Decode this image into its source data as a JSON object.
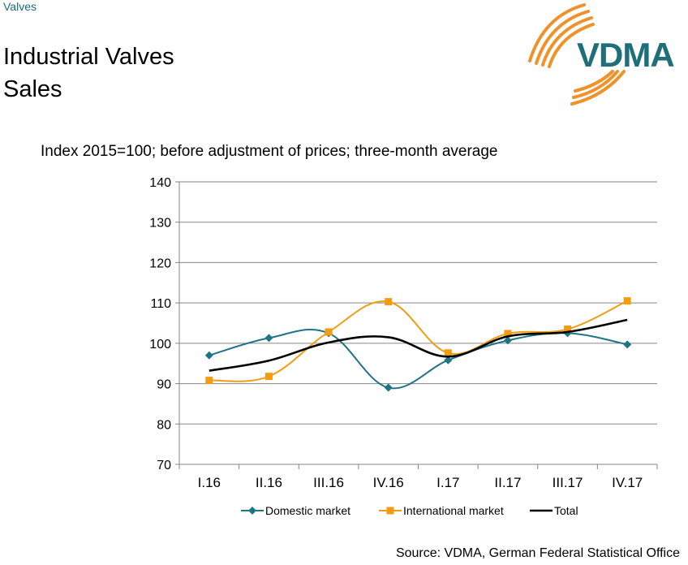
{
  "header": {
    "section_label": "Valves",
    "title_line1": "Industrial Valves",
    "title_line2": "Sales",
    "logo_text": "VDMA"
  },
  "source": "Source: VDMA, German Federal Statistical Office",
  "colors": {
    "domestic": "#1f7585",
    "international": "#f39c12",
    "total": "#000000",
    "logo_arcs": "#f0922a",
    "logo_text": "#1f6f7a"
  },
  "chart_data": {
    "type": "line",
    "title": "Index 2015=100; before adjustment of prices; three-month average",
    "xlabel": "",
    "ylabel": "",
    "categories": [
      "I.16",
      "II.16",
      "III.16",
      "IV.16",
      "I.17",
      "II.17",
      "III.17",
      "IV.17"
    ],
    "ylim": [
      70,
      140
    ],
    "yticks": [
      70,
      80,
      90,
      100,
      110,
      120,
      130,
      140
    ],
    "grid": true,
    "legend_position": "bottom",
    "series": [
      {
        "name": "Domestic market",
        "marker": "diamond",
        "values": [
          97,
          101.3,
          102.5,
          89,
          95.8,
          100.7,
          102.5,
          99.7
        ]
      },
      {
        "name": "International market",
        "marker": "square",
        "values": [
          90.8,
          91.8,
          102.8,
          110.3,
          97.6,
          102.4,
          103.5,
          110.5
        ]
      },
      {
        "name": "Total",
        "marker": "none",
        "values": [
          93.2,
          95.7,
          100.2,
          101.5,
          96.7,
          101.7,
          102.8,
          105.8
        ]
      }
    ]
  }
}
